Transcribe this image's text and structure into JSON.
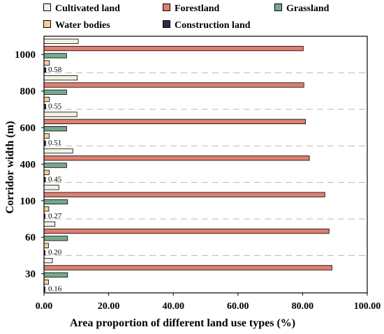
{
  "chart_data": {
    "type": "bar",
    "orientation": "horizontal",
    "categories": [
      "1000",
      "800",
      "600",
      "400",
      "100",
      "60",
      "30"
    ],
    "series": [
      {
        "name": "Cultivated land",
        "color": "#f4f1e4",
        "values": [
          10.6,
          10.3,
          10.2,
          8.9,
          4.6,
          3.4,
          2.6
        ]
      },
      {
        "name": "Forestland",
        "color": "#e07f6e",
        "values": [
          80.2,
          80.4,
          80.9,
          82.1,
          86.9,
          88.2,
          89.1
        ]
      },
      {
        "name": "Grassland",
        "color": "#77a88e",
        "values": [
          7.0,
          7.0,
          7.0,
          7.0,
          7.3,
          7.3,
          7.3
        ]
      },
      {
        "name": "Water bodies",
        "color": "#f5d09c",
        "values": [
          1.7,
          1.7,
          1.6,
          1.6,
          1.5,
          1.4,
          1.4
        ]
      },
      {
        "name": "Construction land",
        "color": "#2b2c4f",
        "values": [
          0.58,
          0.55,
          0.51,
          0.45,
          0.27,
          0.2,
          0.16
        ]
      }
    ],
    "data_labels": [
      "0.58",
      "0.55",
      "0.51",
      "0.45",
      "0.27",
      "0.20",
      "0.16"
    ],
    "xlabel": "Area proportion of different land use types (%)",
    "ylabel": "Corridor width (m)",
    "xlim": [
      0,
      100
    ],
    "xticks": [
      "0.00",
      "20.00",
      "40.00",
      "60.00",
      "80.00",
      "100.00"
    ],
    "legend_placement": "top",
    "grid": "dashed separators between groups"
  }
}
